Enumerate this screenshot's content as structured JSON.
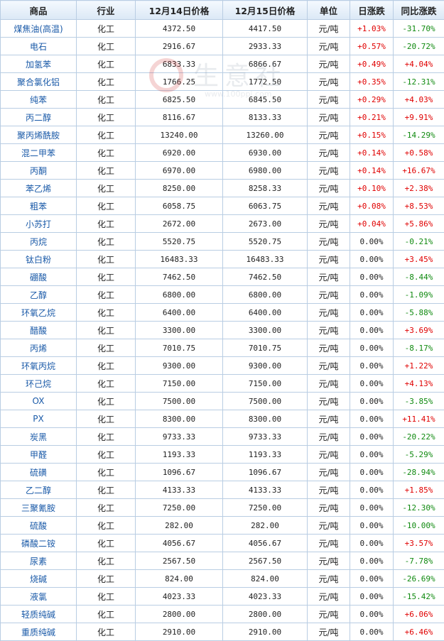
{
  "headers": [
    "商品",
    "行业",
    "12月14日价格",
    "12月15日价格",
    "单位",
    "日涨跌",
    "同比涨跌"
  ],
  "watermark": {
    "text": "生意社",
    "url": "www.100ppi.com"
  },
  "rows": [
    [
      "煤焦油(高温)",
      "化工",
      "4372.50",
      "4417.50",
      "元/吨",
      "+1.03%",
      "-31.70%"
    ],
    [
      "电石",
      "化工",
      "2916.67",
      "2933.33",
      "元/吨",
      "+0.57%",
      "-20.72%"
    ],
    [
      "加氢苯",
      "化工",
      "6833.33",
      "6866.67",
      "元/吨",
      "+0.49%",
      "+4.04%"
    ],
    [
      "聚合氯化铝",
      "化工",
      "1766.25",
      "1772.50",
      "元/吨",
      "+0.35%",
      "-12.31%"
    ],
    [
      "纯苯",
      "化工",
      "6825.50",
      "6845.50",
      "元/吨",
      "+0.29%",
      "+4.03%"
    ],
    [
      "丙二醇",
      "化工",
      "8116.67",
      "8133.33",
      "元/吨",
      "+0.21%",
      "+9.91%"
    ],
    [
      "聚丙烯酰胺",
      "化工",
      "13240.00",
      "13260.00",
      "元/吨",
      "+0.15%",
      "-14.29%"
    ],
    [
      "混二甲苯",
      "化工",
      "6920.00",
      "6930.00",
      "元/吨",
      "+0.14%",
      "+0.58%"
    ],
    [
      "丙酮",
      "化工",
      "6970.00",
      "6980.00",
      "元/吨",
      "+0.14%",
      "+16.67%"
    ],
    [
      "苯乙烯",
      "化工",
      "8250.00",
      "8258.33",
      "元/吨",
      "+0.10%",
      "+2.38%"
    ],
    [
      "粗苯",
      "化工",
      "6058.75",
      "6063.75",
      "元/吨",
      "+0.08%",
      "+8.53%"
    ],
    [
      "小苏打",
      "化工",
      "2672.00",
      "2673.00",
      "元/吨",
      "+0.04%",
      "+5.86%"
    ],
    [
      "丙烷",
      "化工",
      "5520.75",
      "5520.75",
      "元/吨",
      "0.00%",
      "-0.21%"
    ],
    [
      "钛白粉",
      "化工",
      "16483.33",
      "16483.33",
      "元/吨",
      "0.00%",
      "+3.45%"
    ],
    [
      "硼酸",
      "化工",
      "7462.50",
      "7462.50",
      "元/吨",
      "0.00%",
      "-8.44%"
    ],
    [
      "乙醇",
      "化工",
      "6800.00",
      "6800.00",
      "元/吨",
      "0.00%",
      "-1.09%"
    ],
    [
      "环氧乙烷",
      "化工",
      "6400.00",
      "6400.00",
      "元/吨",
      "0.00%",
      "-5.88%"
    ],
    [
      "醋酸",
      "化工",
      "3300.00",
      "3300.00",
      "元/吨",
      "0.00%",
      "+3.69%"
    ],
    [
      "丙烯",
      "化工",
      "7010.75",
      "7010.75",
      "元/吨",
      "0.00%",
      "-8.17%"
    ],
    [
      "环氧丙烷",
      "化工",
      "9300.00",
      "9300.00",
      "元/吨",
      "0.00%",
      "+1.22%"
    ],
    [
      "环己烷",
      "化工",
      "7150.00",
      "7150.00",
      "元/吨",
      "0.00%",
      "+4.13%"
    ],
    [
      "OX",
      "化工",
      "7500.00",
      "7500.00",
      "元/吨",
      "0.00%",
      "-3.85%"
    ],
    [
      "PX",
      "化工",
      "8300.00",
      "8300.00",
      "元/吨",
      "0.00%",
      "+11.41%"
    ],
    [
      "炭黑",
      "化工",
      "9733.33",
      "9733.33",
      "元/吨",
      "0.00%",
      "-20.22%"
    ],
    [
      "甲醛",
      "化工",
      "1193.33",
      "1193.33",
      "元/吨",
      "0.00%",
      "-5.29%"
    ],
    [
      "硫磺",
      "化工",
      "1096.67",
      "1096.67",
      "元/吨",
      "0.00%",
      "-28.94%"
    ],
    [
      "乙二醇",
      "化工",
      "4133.33",
      "4133.33",
      "元/吨",
      "0.00%",
      "+1.85%"
    ],
    [
      "三聚氰胺",
      "化工",
      "7250.00",
      "7250.00",
      "元/吨",
      "0.00%",
      "-12.30%"
    ],
    [
      "硫酸",
      "化工",
      "282.00",
      "282.00",
      "元/吨",
      "0.00%",
      "-10.00%"
    ],
    [
      "磷酸二铵",
      "化工",
      "4056.67",
      "4056.67",
      "元/吨",
      "0.00%",
      "+3.57%"
    ],
    [
      "尿素",
      "化工",
      "2567.50",
      "2567.50",
      "元/吨",
      "0.00%",
      "-7.78%"
    ],
    [
      "烧碱",
      "化工",
      "824.00",
      "824.00",
      "元/吨",
      "0.00%",
      "-26.69%"
    ],
    [
      "液氯",
      "化工",
      "4023.33",
      "4023.33",
      "元/吨",
      "0.00%",
      "-15.42%"
    ],
    [
      "轻质纯碱",
      "化工",
      "2800.00",
      "2800.00",
      "元/吨",
      "0.00%",
      "+6.06%"
    ],
    [
      "重质纯碱",
      "化工",
      "2910.00",
      "2910.00",
      "元/吨",
      "0.00%",
      "+6.46%"
    ]
  ]
}
